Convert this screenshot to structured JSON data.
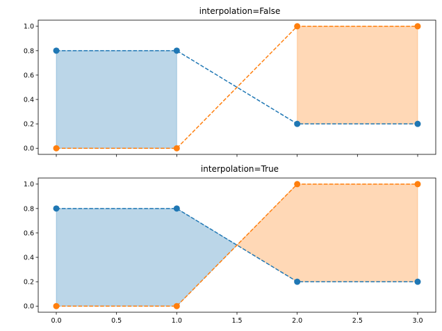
{
  "chart_data": [
    {
      "type": "line",
      "title": "interpolation=False",
      "interpolate": false,
      "xlim": [
        -0.15,
        3.15
      ],
      "ylim": [
        -0.05,
        1.05
      ],
      "x": [
        0,
        1,
        2,
        3
      ],
      "xticks": [
        0.0,
        0.5,
        1.0,
        1.5,
        2.0,
        2.5,
        3.0
      ],
      "xtick_labels_visible": false,
      "yticks": [
        0.0,
        0.2,
        0.4,
        0.6,
        0.8,
        1.0
      ],
      "ytick_labels": [
        "0.0",
        "0.2",
        "0.4",
        "0.6",
        "0.8",
        "1.0"
      ],
      "series": [
        {
          "values": [
            0.8,
            0.8,
            0.2,
            0.2
          ],
          "color": "#1f77b4",
          "linestyle": "dashed",
          "marker": "circle"
        },
        {
          "values": [
            0.0,
            0.0,
            1.0,
            1.0
          ],
          "color": "#ff7f0e",
          "linestyle": "dashed",
          "marker": "circle"
        }
      ],
      "fill_between": [
        {
          "where": "series0 > series1",
          "color": "#1f77b4",
          "alpha": 0.3
        },
        {
          "where": "series1 > series0",
          "color": "#ff7f0e",
          "alpha": 0.3
        }
      ],
      "grid": false
    },
    {
      "type": "line",
      "title": "interpolation=True",
      "interpolate": true,
      "xlim": [
        -0.15,
        3.15
      ],
      "ylim": [
        -0.05,
        1.05
      ],
      "x": [
        0,
        1,
        2,
        3
      ],
      "xticks": [
        0.0,
        0.5,
        1.0,
        1.5,
        2.0,
        2.5,
        3.0
      ],
      "xtick_labels": [
        "0.0",
        "0.5",
        "1.0",
        "1.5",
        "2.0",
        "2.5",
        "3.0"
      ],
      "xtick_labels_visible": true,
      "yticks": [
        0.0,
        0.2,
        0.4,
        0.6,
        0.8,
        1.0
      ],
      "ytick_labels": [
        "0.0",
        "0.2",
        "0.4",
        "0.6",
        "0.8",
        "1.0"
      ],
      "series": [
        {
          "values": [
            0.8,
            0.8,
            0.2,
            0.2
          ],
          "color": "#1f77b4",
          "linestyle": "dashed",
          "marker": "circle"
        },
        {
          "values": [
            0.0,
            0.0,
            1.0,
            1.0
          ],
          "color": "#ff7f0e",
          "linestyle": "dashed",
          "marker": "circle"
        }
      ],
      "fill_between": [
        {
          "where": "series0 > series1",
          "color": "#1f77b4",
          "alpha": 0.3
        },
        {
          "where": "series1 > series0",
          "color": "#ff7f0e",
          "alpha": 0.3
        }
      ],
      "grid": false
    }
  ]
}
